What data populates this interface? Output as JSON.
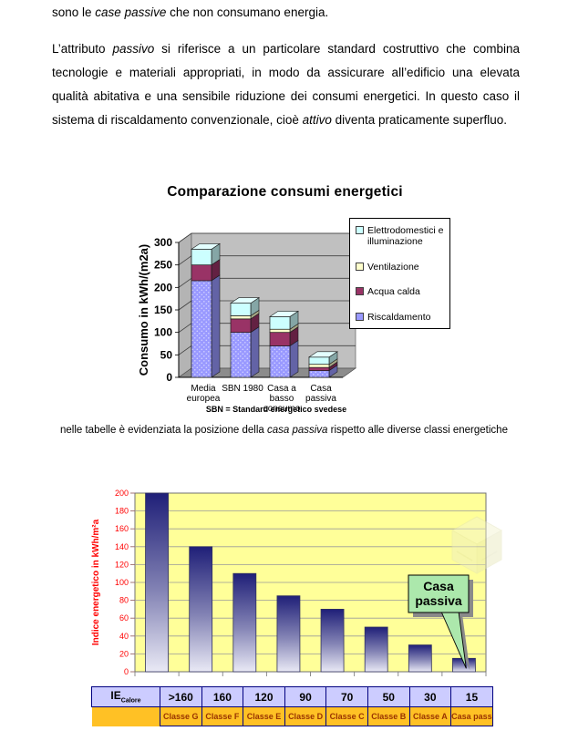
{
  "document": {
    "intro": {
      "segments": [
        {
          "t": "sono le ",
          "i": false
        },
        {
          "t": "case passive",
          "i": true
        },
        {
          "t": " che non consumano energia.",
          "i": false
        }
      ]
    },
    "paragraph": {
      "segments": [
        {
          "t": "L’attributo ",
          "i": false
        },
        {
          "t": "passivo",
          "i": true
        },
        {
          "t": " si riferisce a un particolare standard costruttivo che combina tecnologie e materiali appropriati, in modo da assicurare all’edificio una elevata qualità abitativa e una sensibile riduzione dei consumi energetici. In questo caso il sistema di riscaldamento convenzionale, cioè ",
          "i": false
        },
        {
          "t": "attivo",
          "i": true
        },
        {
          "t": " diventa praticamente superfluo.",
          "i": false
        }
      ]
    },
    "caption": {
      "segments": [
        {
          "t": "nelle tabelle è evidenziata la posizione della ",
          "i": false
        },
        {
          "t": "casa passiva",
          "i": true
        },
        {
          "t": " rispetto alle diverse classi energetiche",
          "i": false
        }
      ]
    }
  },
  "chart_data": [
    {
      "type": "bar",
      "variant": "3d-stacked",
      "title": "Comparazione consumi energetici",
      "ylabel": "Consumo in kWh/(m2a)",
      "ylim": [
        0,
        300
      ],
      "ytick_step": 50,
      "grid": true,
      "legend_position": "right",
      "wall_color": "#C0C0C0",
      "floor_color": "#8C8C8C",
      "categories": [
        [
          "Media",
          "europea"
        ],
        [
          "SBN 1980"
        ],
        [
          "Casa a",
          "basso",
          "consumo"
        ],
        [
          "Casa",
          "passiva"
        ]
      ],
      "series": [
        {
          "name": "Riscaldamento",
          "color": "#9999FF",
          "texture": "dots",
          "values": [
            215,
            100,
            70,
            15
          ]
        },
        {
          "name": "Acqua calda",
          "color": "#993366",
          "texture": "solid",
          "values": [
            35,
            30,
            30,
            7
          ]
        },
        {
          "name": "Ventilazione",
          "color": "#FFFFCC",
          "texture": "solid",
          "values": [
            0,
            7,
            7,
            7
          ]
        },
        {
          "name": "Elettrodomestici e illuminazione",
          "color": "#CCFFFF",
          "texture": "solid",
          "values": [
            35,
            28,
            28,
            16
          ]
        }
      ],
      "legend_order": [
        "Elettrodomestici e illuminazione",
        "Ventilazione",
        "Acqua calda",
        "Riscaldamento"
      ],
      "footnote": "SBN = Standard energetico svedese"
    },
    {
      "type": "bar",
      "variant": "gradient-columns",
      "title": "",
      "ylabel": "Indice energetico in kWh/m²a",
      "ylim": [
        0,
        200
      ],
      "ytick_step": 20,
      "grid": true,
      "axis_color": "#FF0000",
      "plot_bg": "#FFFF99",
      "bar_gradient_top": "#1F1F78",
      "bar_gradient_bottom": "#E9E9F5",
      "values": [
        200,
        140,
        110,
        85,
        70,
        50,
        30,
        15
      ],
      "callout": {
        "label": "Casa passiva",
        "target_index": 7,
        "bg": "#ACE8AC"
      },
      "table": {
        "row_header_main": "IE",
        "row_header_sub": "Calore",
        "values": [
          ">160",
          "160",
          "120",
          "90",
          "70",
          "50",
          "30",
          "15"
        ],
        "classes": [
          "Classe G",
          "Classe F",
          "Classe E",
          "Classe D",
          "Classe C",
          "Classe B",
          "Classe A",
          "Casa passiva"
        ],
        "row1_bg": "#CCCCFF",
        "row2_bg": "#FFC125",
        "class_text_color": "#993300"
      }
    }
  ]
}
